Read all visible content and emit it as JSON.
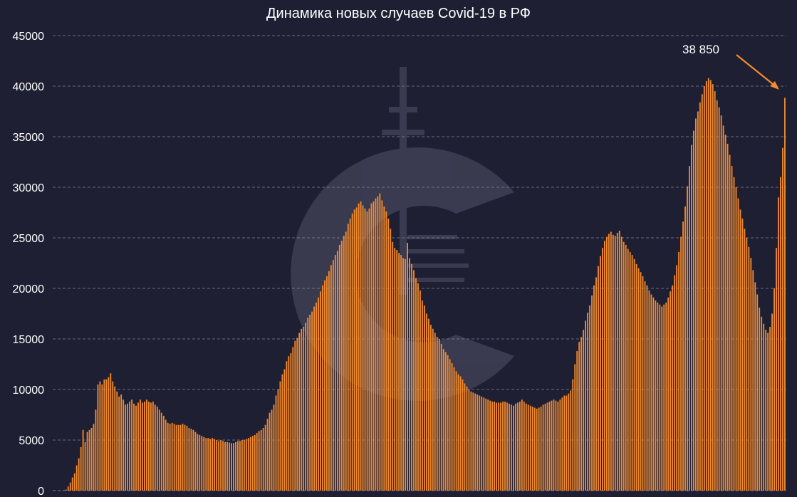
{
  "colors": {
    "background": "#1f1f33",
    "bar": "#f28a2e",
    "bar_edge": "#ffb06a",
    "grid": "#8c8ca0",
    "text": "#ffffff",
    "arrow": "#f28a2e",
    "watermark": "#3a3a50"
  },
  "watermark_icon": "c-logo-icon",
  "chart_data": {
    "type": "bar",
    "title": "Динамика новых случаев Covid-19 в РФ",
    "xlabel": "",
    "ylabel": "",
    "ylim": [
      0,
      45000
    ],
    "yticks": [
      0,
      5000,
      10000,
      15000,
      20000,
      25000,
      30000,
      35000,
      40000,
      45000
    ],
    "grid": "horizontal dashed",
    "annotation": {
      "text": "38 850",
      "value": 38850
    },
    "values": [
      0,
      0,
      0,
      0,
      0,
      0,
      100,
      400,
      800,
      1300,
      1700,
      2500,
      3200,
      4300,
      6000,
      4800,
      5800,
      6000,
      6200,
      6600,
      8000,
      10500,
      10800,
      10500,
      11000,
      11000,
      11200,
      11600,
      10800,
      10300,
      9800,
      9300,
      9500,
      9000,
      8500,
      8600,
      8800,
      9000,
      8600,
      8400,
      8700,
      9000,
      8700,
      8800,
      9000,
      8800,
      8700,
      8800,
      8500,
      8300,
      8000,
      7700,
      7400,
      7000,
      6700,
      6600,
      6700,
      6600,
      6500,
      6500,
      6500,
      6600,
      6500,
      6400,
      6200,
      6100,
      6000,
      5800,
      5600,
      5500,
      5400,
      5300,
      5200,
      5200,
      5100,
      5200,
      5100,
      5000,
      4900,
      5000,
      4900,
      4800,
      4800,
      4750,
      4700,
      4700,
      4800,
      4900,
      4900,
      5000,
      5000,
      5100,
      5200,
      5300,
      5400,
      5500,
      5700,
      5900,
      6000,
      6200,
      6500,
      7100,
      7700,
      8000,
      8500,
      9400,
      10000,
      10800,
      11500,
      12000,
      12800,
      13300,
      13600,
      14200,
      14800,
      15100,
      15600,
      16000,
      16200,
      16600,
      17100,
      17400,
      17700,
      18200,
      18600,
      19100,
      19700,
      20300,
      20800,
      21200,
      21700,
      22300,
      22800,
      23300,
      23700,
      24300,
      24700,
      25200,
      25600,
      26400,
      26900,
      27400,
      27800,
      28000,
      28400,
      28600,
      28200,
      27900,
      27600,
      27900,
      28400,
      28600,
      28900,
      29100,
      29400,
      28700,
      28100,
      27600,
      26900,
      25900,
      24600,
      24000,
      23800,
      23500,
      23300,
      23000,
      22900,
      24500,
      23000,
      22400,
      21800,
      21000,
      20500,
      19800,
      18800,
      18300,
      17500,
      17000,
      16400,
      16000,
      15600,
      15200,
      15000,
      14500,
      14000,
      13700,
      13400,
      13000,
      12600,
      12200,
      11800,
      11500,
      11300,
      11000,
      10600,
      10300,
      10000,
      9800,
      9700,
      9600,
      9500,
      9400,
      9300,
      9200,
      9100,
      9000,
      8900,
      8800,
      8800,
      8700,
      8700,
      8700,
      8800,
      8800,
      8700,
      8600,
      8500,
      8400,
      8600,
      8700,
      8800,
      9000,
      8800,
      8600,
      8500,
      8400,
      8300,
      8200,
      8100,
      8200,
      8300,
      8500,
      8600,
      8700,
      8800,
      8900,
      9000,
      8900,
      8800,
      9000,
      9200,
      9400,
      9400,
      9600,
      9900,
      11000,
      12500,
      13800,
      14700,
      15200,
      15900,
      16800,
      17600,
      18300,
      19300,
      20300,
      21100,
      22200,
      23200,
      24000,
      24700,
      25100,
      25400,
      25600,
      25300,
      25200,
      25500,
      25700,
      25100,
      24600,
      24300,
      23900,
      23600,
      23300,
      22900,
      22400,
      22000,
      21600,
      21200,
      20700,
      20300,
      19800,
      19400,
      19100,
      18800,
      18600,
      18400,
      18200,
      18400,
      18600,
      19100,
      19700,
      20300,
      21300,
      22300,
      23600,
      25100,
      26600,
      28100,
      30100,
      32100,
      34200,
      35600,
      36800,
      37500,
      38400,
      39200,
      40000,
      40500,
      40800,
      40600,
      40200,
      39500,
      38600,
      37900,
      37100,
      36100,
      35200,
      34300,
      33200,
      32100,
      31000,
      30000,
      28900,
      27800,
      26900,
      25900,
      25000,
      24100,
      23000,
      21800,
      20600,
      19400,
      18100,
      17200,
      16500,
      15900,
      15600,
      16200,
      17500,
      20000,
      24000,
      29000,
      31000,
      33900,
      38850
    ]
  }
}
